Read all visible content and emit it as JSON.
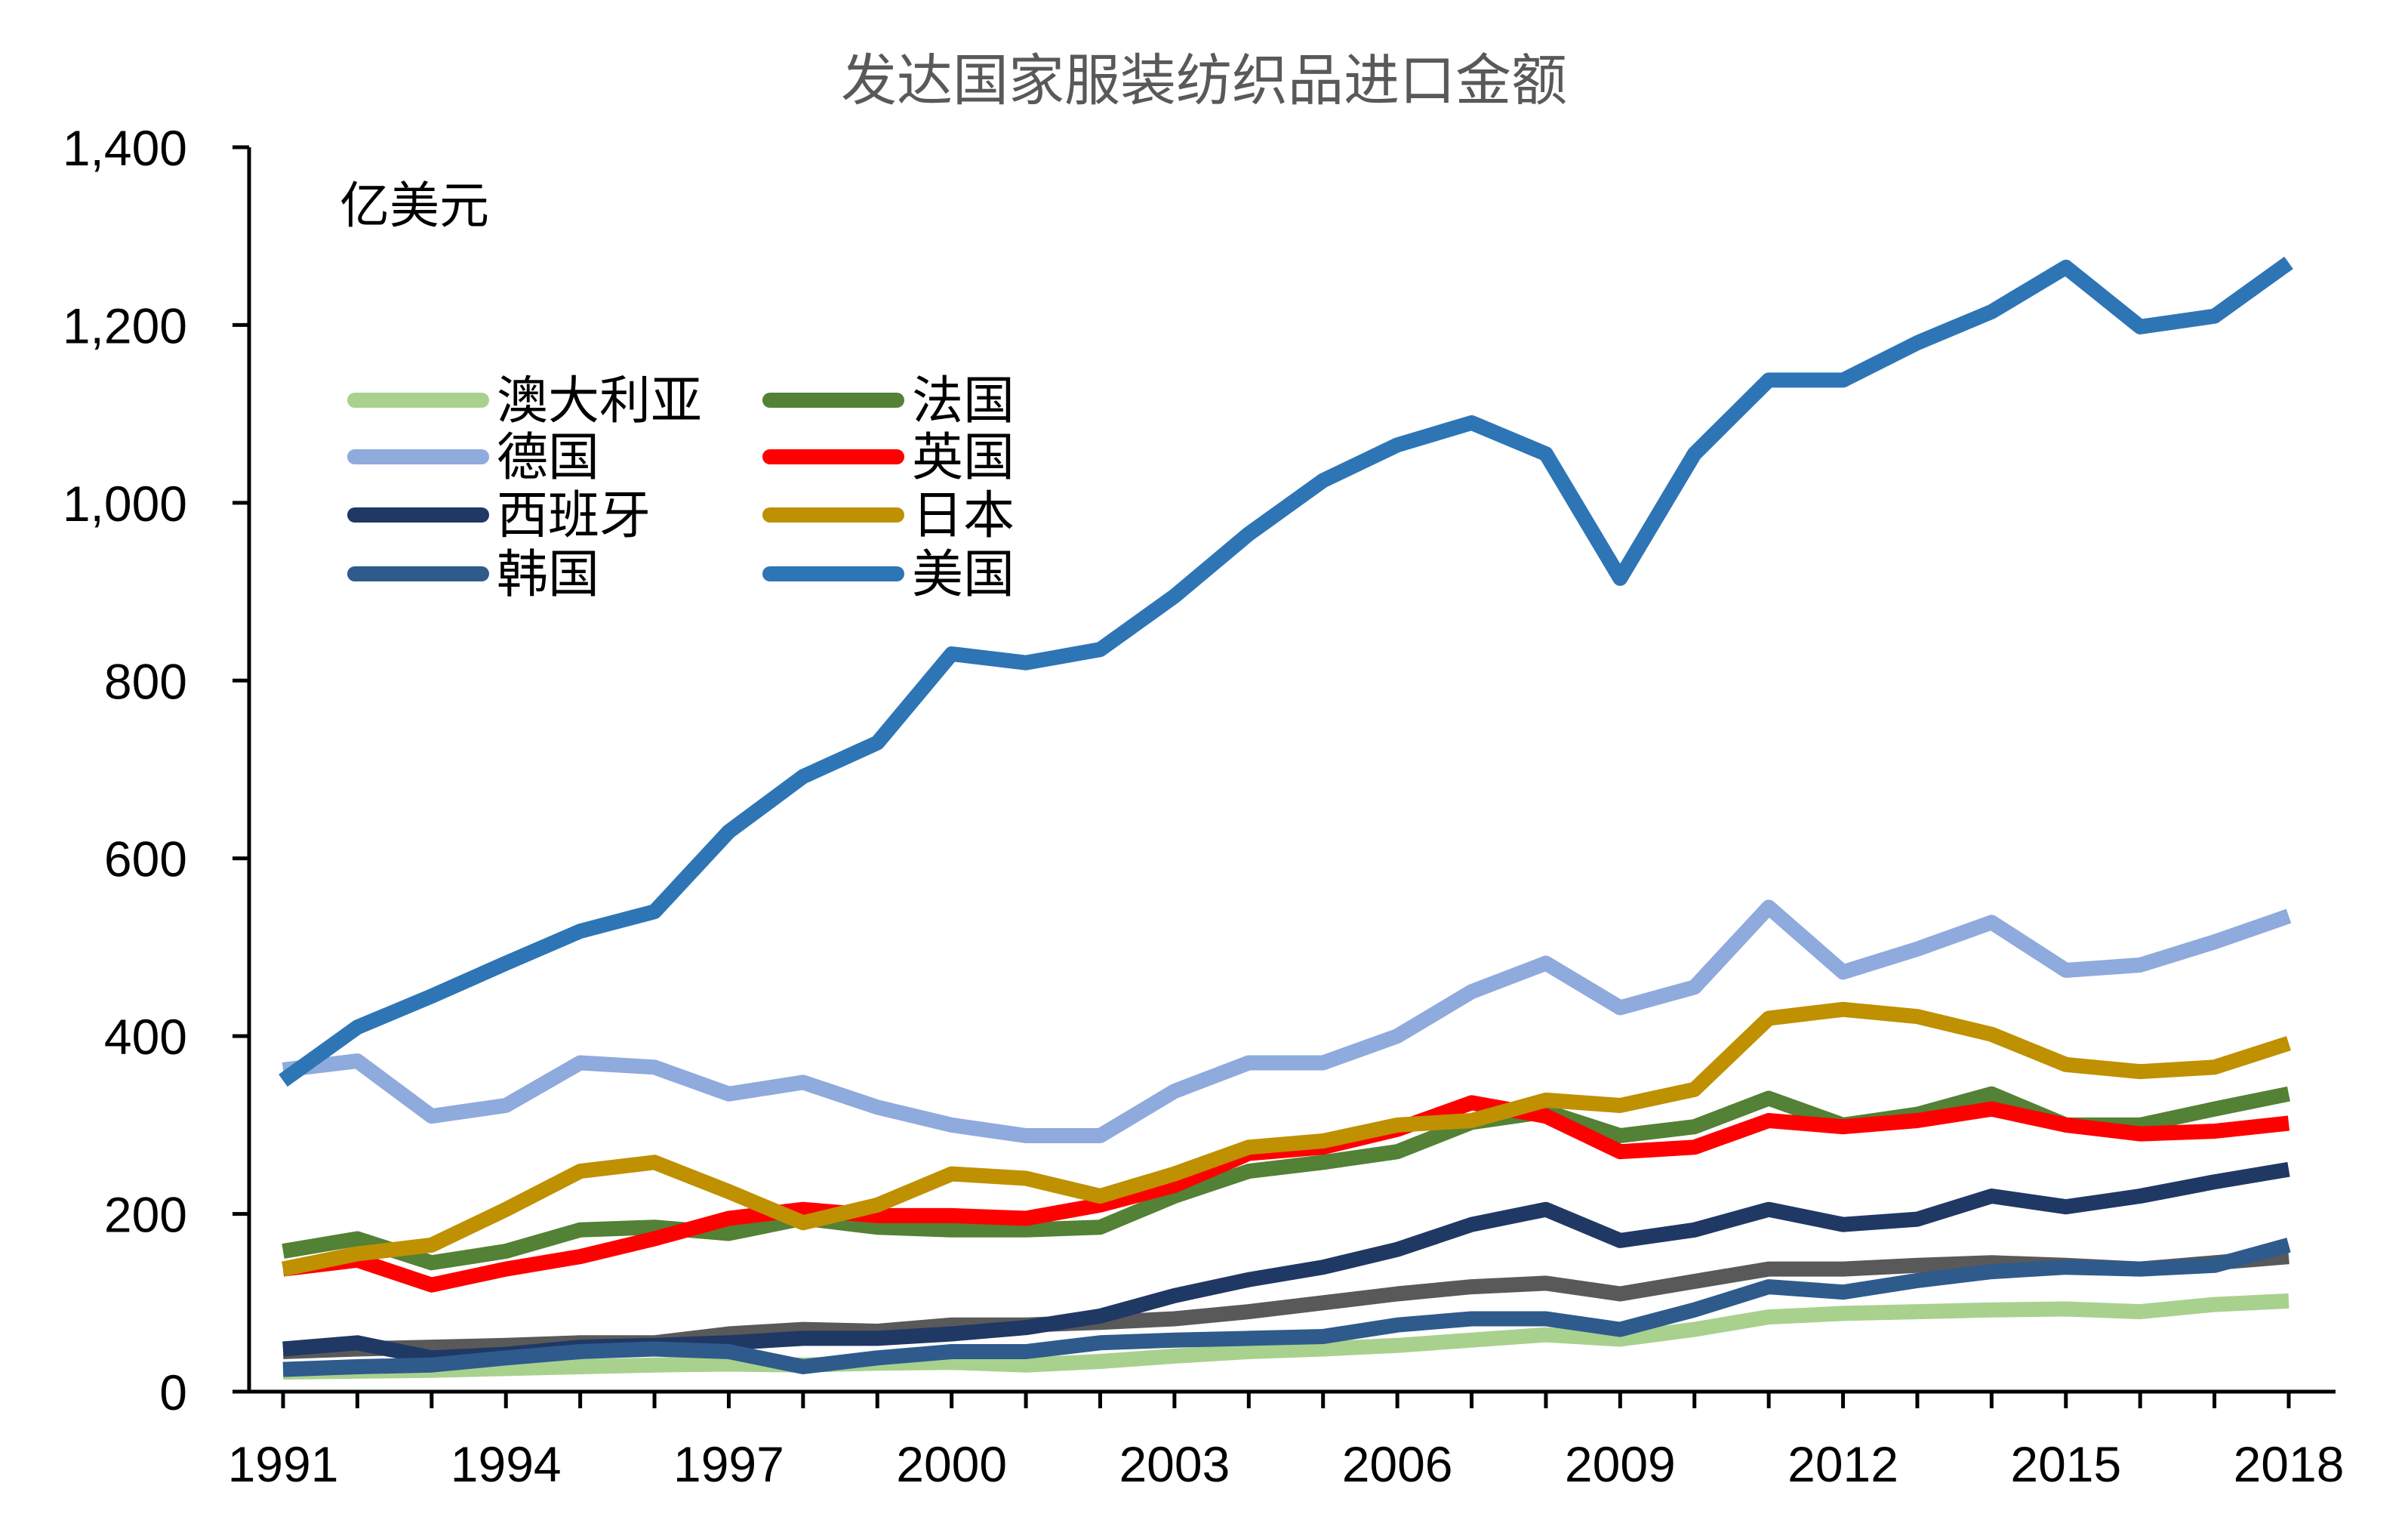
{
  "chart_data": {
    "type": "line",
    "title": "发达国家服装纺织品进口金额",
    "unit_label": "亿美元",
    "xlabel": "",
    "ylabel": "亿美元",
    "x": [
      1991,
      1992,
      1993,
      1994,
      1995,
      1996,
      1997,
      1998,
      1999,
      2000,
      2001,
      2002,
      2003,
      2004,
      2005,
      2006,
      2007,
      2008,
      2009,
      2010,
      2011,
      2012,
      2013,
      2014,
      2015,
      2016,
      2017,
      2018
    ],
    "xlim": [
      1991,
      2018
    ],
    "ylim": [
      0,
      1400
    ],
    "x_ticks": [
      "1991",
      "1994",
      "1997",
      "2000",
      "2003",
      "2006",
      "2009",
      "2012",
      "2015",
      "2018"
    ],
    "x_tick_values": [
      1991,
      1994,
      1997,
      2000,
      2003,
      2006,
      2009,
      2012,
      2015,
      2018
    ],
    "y_ticks": [
      "0",
      "200",
      "400",
      "600",
      "800",
      "1,000",
      "1,200",
      "1,400"
    ],
    "y_tick_values": [
      0,
      200,
      400,
      600,
      800,
      1000,
      1200,
      1400
    ],
    "grid": false,
    "legend_position": "top-left",
    "series": [
      {
        "name": "澳大利亚",
        "color": "#a9d18e",
        "values": [
          22,
          23,
          24,
          26,
          28,
          30,
          31,
          30,
          32,
          33,
          30,
          34,
          40,
          45,
          48,
          52,
          58,
          64,
          59,
          70,
          84,
          88,
          90,
          92,
          93,
          90,
          98,
          102
        ]
      },
      {
        "name": "德国",
        "color": "#8faadc",
        "values": [
          362,
          372,
          310,
          322,
          370,
          365,
          335,
          348,
          320,
          300,
          288,
          288,
          338,
          370,
          370,
          400,
          450,
          482,
          432,
          455,
          545,
          472,
          498,
          528,
          474,
          480,
          506,
          535
        ]
      },
      {
        "name": "西班牙",
        "color": "#203864",
        "values": [
          48,
          55,
          38,
          42,
          50,
          52,
          55,
          60,
          60,
          65,
          72,
          85,
          108,
          126,
          140,
          160,
          188,
          205,
          170,
          182,
          205,
          188,
          194,
          220,
          208,
          220,
          236,
          250
        ]
      },
      {
        "name": "韩国",
        "color": "#2e5b8c",
        "values": [
          25,
          28,
          30,
          38,
          45,
          48,
          45,
          28,
          38,
          45,
          45,
          55,
          58,
          60,
          62,
          75,
          82,
          82,
          70,
          92,
          118,
          112,
          125,
          135,
          140,
          138,
          142,
          165
        ]
      },
      {
        "name": "法国",
        "color": "#538135",
        "values": [
          158,
          172,
          145,
          158,
          182,
          185,
          178,
          195,
          185,
          182,
          182,
          185,
          220,
          248,
          258,
          270,
          303,
          315,
          288,
          298,
          330,
          300,
          312,
          335,
          300,
          300,
          318,
          335
        ]
      },
      {
        "name": "英国",
        "color": "#ff0000",
        "values": [
          138,
          148,
          120,
          138,
          152,
          172,
          195,
          205,
          198,
          198,
          195,
          210,
          232,
          268,
          275,
          295,
          325,
          310,
          270,
          275,
          305,
          298,
          305,
          318,
          300,
          290,
          293,
          302
        ]
      },
      {
        "name": "日本",
        "color": "#bf9000",
        "values": [
          138,
          155,
          165,
          205,
          248,
          258,
          225,
          190,
          210,
          245,
          240,
          220,
          245,
          275,
          282,
          300,
          305,
          328,
          322,
          340,
          420,
          430,
          422,
          402,
          368,
          360,
          365,
          392
        ]
      },
      {
        "name": "美国",
        "color": "#2e75b6",
        "values": [
          350,
          410,
          445,
          482,
          518,
          540,
          630,
          692,
          730,
          830,
          820,
          835,
          895,
          965,
          1025,
          1065,
          1090,
          1055,
          915,
          1055,
          1138,
          1138,
          1180,
          1215,
          1265,
          1198,
          1210,
          1270
        ]
      },
      {
        "name": "",
        "color": "#595959",
        "values": [
          45,
          48,
          50,
          52,
          55,
          55,
          65,
          70,
          68,
          75,
          75,
          78,
          82,
          90,
          100,
          110,
          118,
          122,
          110,
          124,
          138,
          138,
          142,
          145,
          142,
          138,
          145,
          152
        ]
      }
    ]
  }
}
